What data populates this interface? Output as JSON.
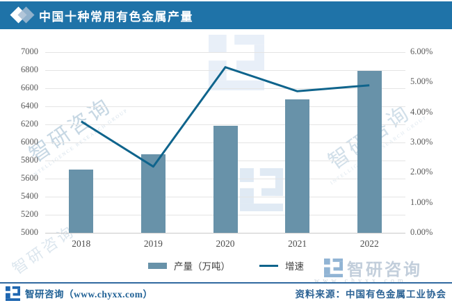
{
  "header": {
    "title": "中国十种常用有色金属产量"
  },
  "chart_data": {
    "type": "bar",
    "title": "中国十种常用有色金属产量",
    "categories": [
      "2018",
      "2019",
      "2020",
      "2021",
      "2022"
    ],
    "series": [
      {
        "name": "产量（万吨）",
        "type": "bar",
        "axis": "left",
        "values": [
          5703,
          5866,
          6188,
          6477,
          6794
        ]
      },
      {
        "name": "增速",
        "type": "line",
        "axis": "right",
        "values": [
          3.7,
          2.2,
          5.5,
          4.7,
          4.9
        ]
      }
    ],
    "left_axis": {
      "min": 5000,
      "max": 7000,
      "step": 200,
      "labels": [
        "7000",
        "6800",
        "6600",
        "6400",
        "6200",
        "6000",
        "5800",
        "5600",
        "5400",
        "5200",
        "5000"
      ]
    },
    "right_axis": {
      "min": 0,
      "max": 6,
      "step": 1,
      "labels": [
        "6.00%",
        "5.00%",
        "4.00%",
        "3.00%",
        "2.00%",
        "1.00%",
        "0.00%"
      ]
    },
    "grid": true,
    "legend_position": "bottom"
  },
  "legend": {
    "bar_label": "产量（万吨）",
    "line_label": "增速"
  },
  "footer": {
    "brand": "智研咨询（www.chyxx.com）",
    "source": "资料来源：中国有色金属工业协会"
  },
  "watermark": {
    "brand": "智研咨询",
    "sub": "INTELLIGENCE RESEARCH GROUP",
    "domain": "www.chyxx.com"
  },
  "colors": {
    "header_bg": "#1f73a8",
    "bar": "#6892a9",
    "line": "#0f648c",
    "grid": "#e4e4e4",
    "axis_text": "#595959",
    "footer_text": "#1d5f94"
  }
}
